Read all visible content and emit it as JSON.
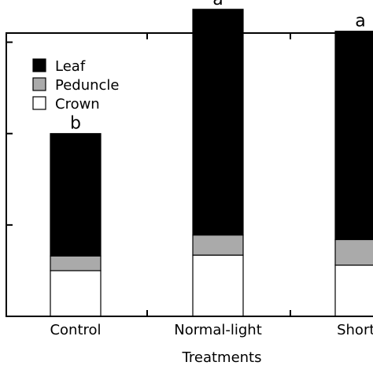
{
  "chart_data": {
    "type": "bar",
    "stacked": true,
    "xlabel": "Treatments",
    "ylabel": "",
    "categories": [
      "Control",
      "Normal-light",
      "Short-l"
    ],
    "ylim": [
      0,
      3.1
    ],
    "y_ticks": [
      0,
      1,
      2,
      3
    ],
    "grid": false,
    "legend_position": "top-left",
    "series": [
      {
        "name": "Crown",
        "color": "#ffffff",
        "values": [
          0.5,
          0.67,
          0.56
        ]
      },
      {
        "name": "Peduncle",
        "color": "#aaaaaa",
        "values": [
          0.16,
          0.22,
          0.28
        ]
      },
      {
        "name": "Leaf",
        "color": "#000000",
        "values": [
          1.34,
          2.47,
          2.28
        ]
      }
    ],
    "legend_order": [
      "Leaf",
      "Peduncle",
      "Crown"
    ],
    "annotations": [
      "b",
      "a",
      "a"
    ]
  }
}
